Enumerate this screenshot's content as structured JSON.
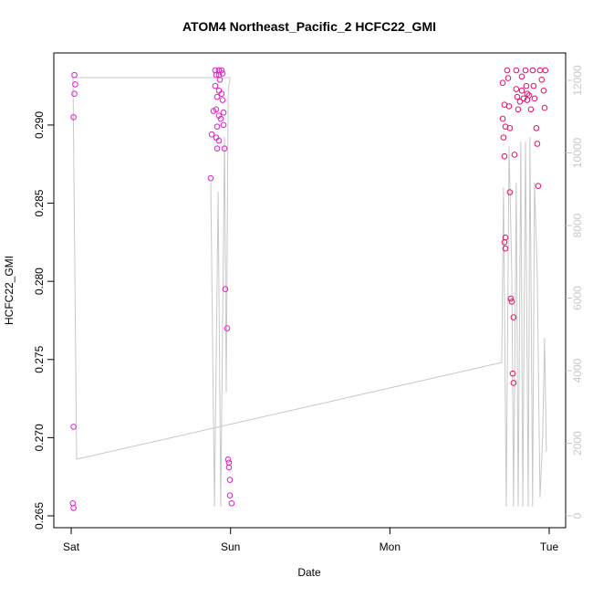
{
  "chart_data": {
    "type": "scatter",
    "title": "ATOM4 Northeast_Pacific_2 HCFC22_GMI",
    "x_label": "Date",
    "y_label": "HCFC22_GMI",
    "xlim": [
      -0.109,
      3.103
    ],
    "xticks": [
      {
        "value": 0,
        "label": "Sat"
      },
      {
        "value": 1,
        "label": "Sun"
      },
      {
        "value": 2,
        "label": "Mon"
      },
      {
        "value": 3,
        "label": "Tue"
      }
    ],
    "ylim": [
      0.26424,
      0.29461
    ],
    "yticks": [
      0.265,
      {
        "value": 0.27,
        "label": "0.270"
      },
      0.275,
      {
        "value": 0.28,
        "label": "0.280"
      },
      0.285,
      {
        "value": 0.29,
        "label": "0.290"
      }
    ],
    "y2lim": [
      -327,
      12755
    ],
    "y2ticks": [
      0,
      2000,
      4000,
      6000,
      8000,
      10000,
      12000
    ],
    "series": [
      {
        "color": "#c8c8c8",
        "axis": "y2",
        "type": "line",
        "x": [
          0.876,
          0.899,
          0.922,
          0.939,
          0.962,
          0.973,
          0.985,
          0.996,
          0.011,
          0.034,
          2.702,
          2.713,
          2.73,
          2.748,
          2.765,
          2.776,
          2.793,
          2.805,
          2.822,
          2.834,
          2.851,
          2.868,
          2.879,
          2.896,
          2.908,
          2.925,
          2.942,
          2.959,
          2.971,
          2.982
        ],
        "values": [
          9182,
          252,
          8931,
          252,
          10440,
          3396,
          11698,
          12075,
          12075,
          1560,
          4226,
          9057,
          252,
          10189,
          6667,
          252,
          9182,
          252,
          10314,
          252,
          10314,
          252,
          10440,
          252,
          9182,
          6667,
          503,
          2138,
          4906,
          1761
        ]
      },
      {
        "color": "#e020c8",
        "x": [
          0.02,
          0.025,
          0.02,
          0.015,
          0.015,
          0.01,
          0.015,
          0.904,
          0.927,
          0.91,
          0.927,
          0.95,
          0.904,
          0.927,
          0.944,
          0.916,
          0.95,
          0.91,
          0.893,
          0.927,
          0.956,
          0.939,
          0.916,
          0.956,
          0.91,
          0.927,
          0.916,
          0.962,
          0.967,
          0.979,
          0.985,
          0.99,
          0.99,
          0.996,
          0.996,
          1.007,
          0.944,
          0.933,
          0.876,
          0.882
        ],
        "values": [
          0.2932,
          0.2926,
          0.292,
          0.2905,
          0.2707,
          0.2658,
          0.2655,
          0.2935,
          0.2935,
          0.2932,
          0.2932,
          0.2933,
          0.2925,
          0.2922,
          0.292,
          0.2918,
          0.2916,
          0.291,
          0.2909,
          0.2906,
          0.2908,
          0.2904,
          0.2899,
          0.29,
          0.2892,
          0.289,
          0.2885,
          0.2885,
          0.2795,
          0.277,
          0.2686,
          0.2684,
          0.2681,
          0.2673,
          0.2663,
          0.2658,
          0.2935,
          0.2929,
          0.2866,
          0.2894
        ]
      },
      {
        "color": "#e8106a",
        "x": [
          2.708,
          2.719,
          2.708,
          2.725,
          2.713,
          2.719,
          2.725,
          2.719,
          2.725,
          2.736,
          2.742,
          2.748,
          2.753,
          2.753,
          2.759,
          2.765,
          2.776,
          2.771,
          2.776,
          2.782,
          2.793,
          2.793,
          2.799,
          2.805,
          2.816,
          2.828,
          2.839,
          2.851,
          2.856,
          2.862,
          2.874,
          2.885,
          2.896,
          2.902,
          2.908,
          2.919,
          2.925,
          2.931,
          2.942,
          2.953,
          2.965,
          2.971,
          2.976,
          2.828,
          2.862
        ],
        "values": [
          0.2927,
          0.2913,
          0.2904,
          0.2899,
          0.2892,
          0.288,
          0.2828,
          0.2825,
          0.2821,
          0.2935,
          0.293,
          0.2912,
          0.2898,
          0.2857,
          0.2789,
          0.2787,
          0.2777,
          0.2741,
          0.2735,
          0.2881,
          0.2935,
          0.2923,
          0.2918,
          0.291,
          0.2915,
          0.2922,
          0.2917,
          0.2935,
          0.2925,
          0.2916,
          0.2919,
          0.291,
          0.2935,
          0.2925,
          0.2917,
          0.2898,
          0.2888,
          0.2861,
          0.2935,
          0.2929,
          0.2922,
          0.2911,
          0.2935,
          0.2931,
          0.292
        ]
      }
    ]
  }
}
